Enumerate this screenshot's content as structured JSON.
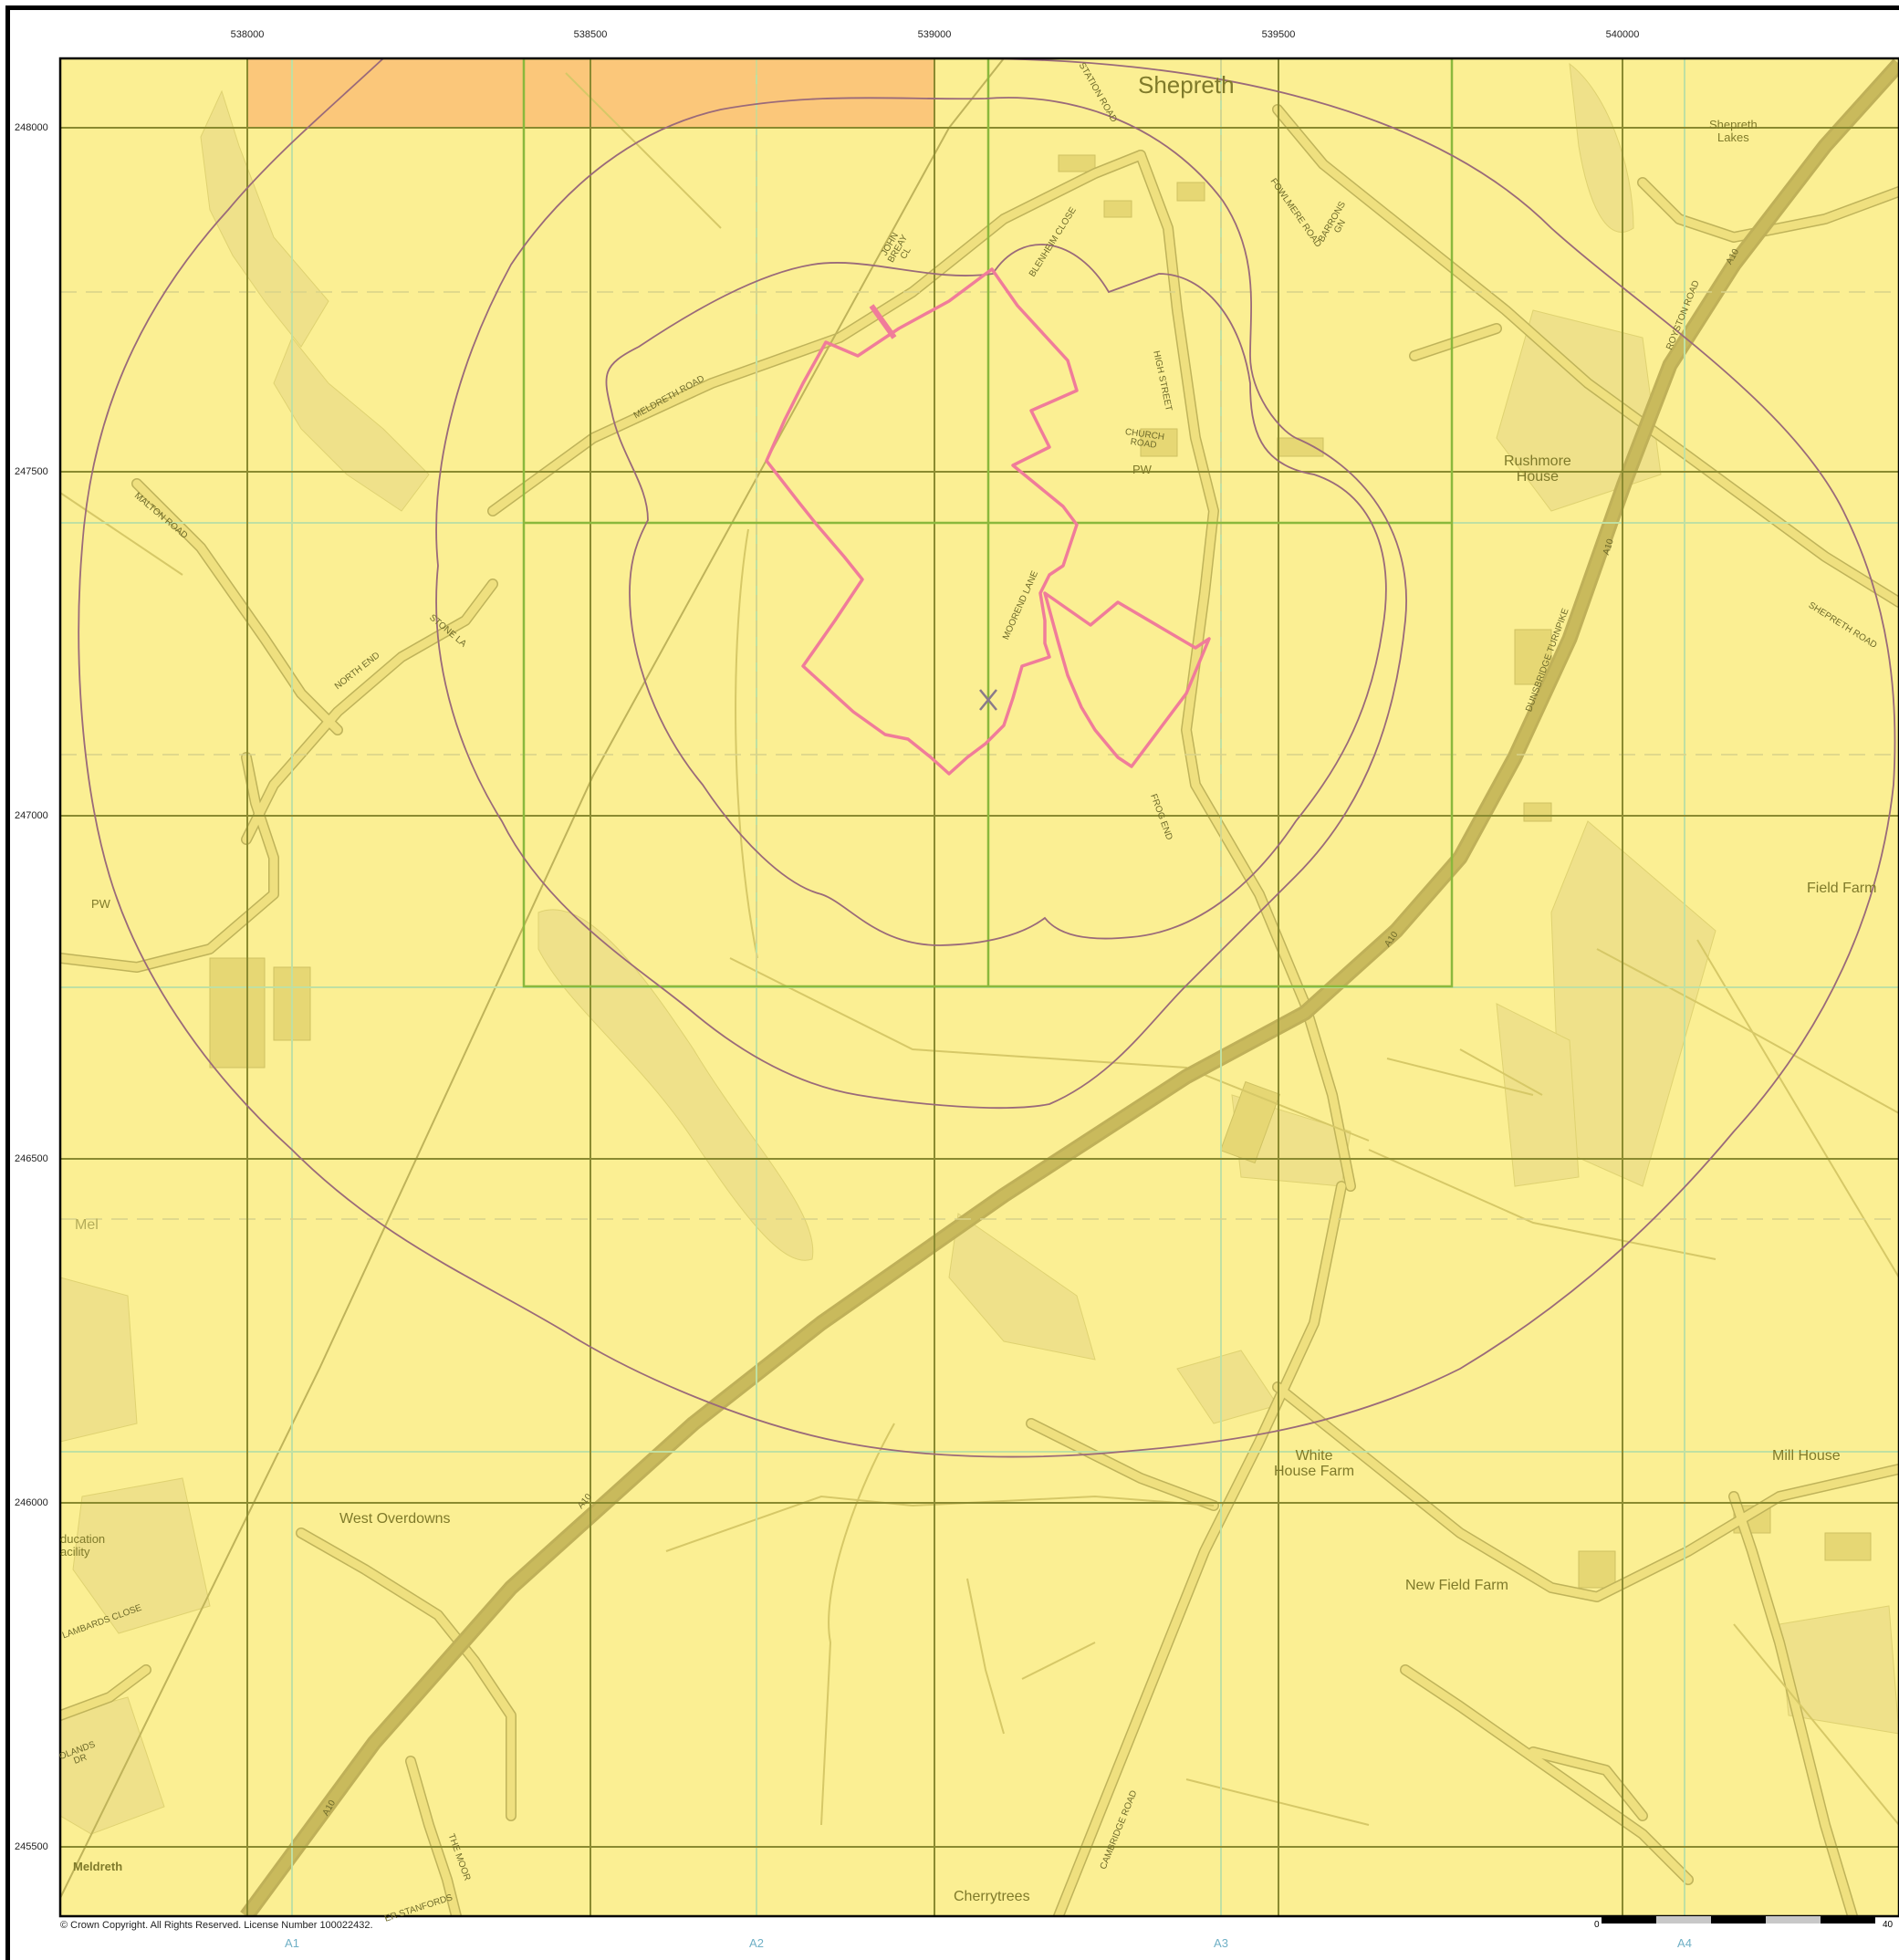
{
  "map": {
    "place_names": {
      "shepreth": "Shepreth",
      "shepreth_lakes": "Shepreth\nLakes",
      "rushmore_house": "Rushmore\nHouse",
      "field_farm": "Field Farm",
      "west_overdowns": "West Overdowns",
      "white_house_farm": "White\nHouse Farm",
      "new_field_farm": "New Field Farm",
      "mill_house": "Mill House",
      "cherrytrees": "Cherrytrees",
      "meldreth": "Meldreth",
      "mel_partial": "Mel",
      "pw_west": "PW",
      "pw_church": "PW",
      "education_facility": "ducation\nacility"
    },
    "road_names": {
      "meldreth_road": "MELDRETH ROAD",
      "malton_road": "MALTON ROAD",
      "north_end": "NORTH END",
      "stone_lane": "STONE LA",
      "john_breay_close": "JOHN\nBREAY\nCL",
      "blenheim_close": "BLENHEIM CLOSE",
      "station_road": "STATION ROAD",
      "fowlmere_road": "FOWLMERE ROAD",
      "barrons_gn": "BARRONS\nGN",
      "high_street": "HIGH STREET",
      "church_road": "CHURCH\nROAD",
      "moorend_lane": "MOOREND LANE",
      "frog_end": "FROG END",
      "dunsbridge_turnpike": "DUNSBRIDGE TURNPIKE",
      "royston_road": "ROYSTON ROAD",
      "shepreth_road": "SHEPRETH ROAD",
      "a10_north": "A10",
      "a10_mid": "A10",
      "a10_south": "A10",
      "a10_sw": "A10",
      "a10_ne": "A10",
      "the_moor": "THE MOOR",
      "cambridge_road": "CAMBRIDGE ROAD",
      "lambards_close": "LAMBARDS CLOSE",
      "olands_dr": "OLANDS\nDR",
      "stanfords": "ER STANFORDS"
    },
    "grid": {
      "eastings": [
        "538000",
        "538500",
        "539000",
        "539500",
        "540000"
      ],
      "northings": [
        "248000",
        "247500",
        "247000",
        "246500",
        "246000",
        "245500"
      ],
      "sheet_refs": [
        "A1",
        "A2",
        "A3",
        "A4"
      ]
    },
    "scale_bar": {
      "start_label": "0",
      "end_label": "40"
    },
    "copyright": "© Crown Copyright. All Rights Reserved. License Number 100022432.",
    "colors": {
      "land": "#fbef93",
      "highlight_block": "#fbc77a",
      "road": "#efe07f",
      "road_edge": "#bfb35a",
      "a10": "#c9ba5c",
      "grid_major": "#8a8a30",
      "grid_green": "#8ab83c",
      "grid_minor": "#bfe0a3",
      "buffer_ring": "#9a6a7a",
      "site_boundary": "#f07c9a",
      "feature_fill": "#eee08a"
    }
  }
}
